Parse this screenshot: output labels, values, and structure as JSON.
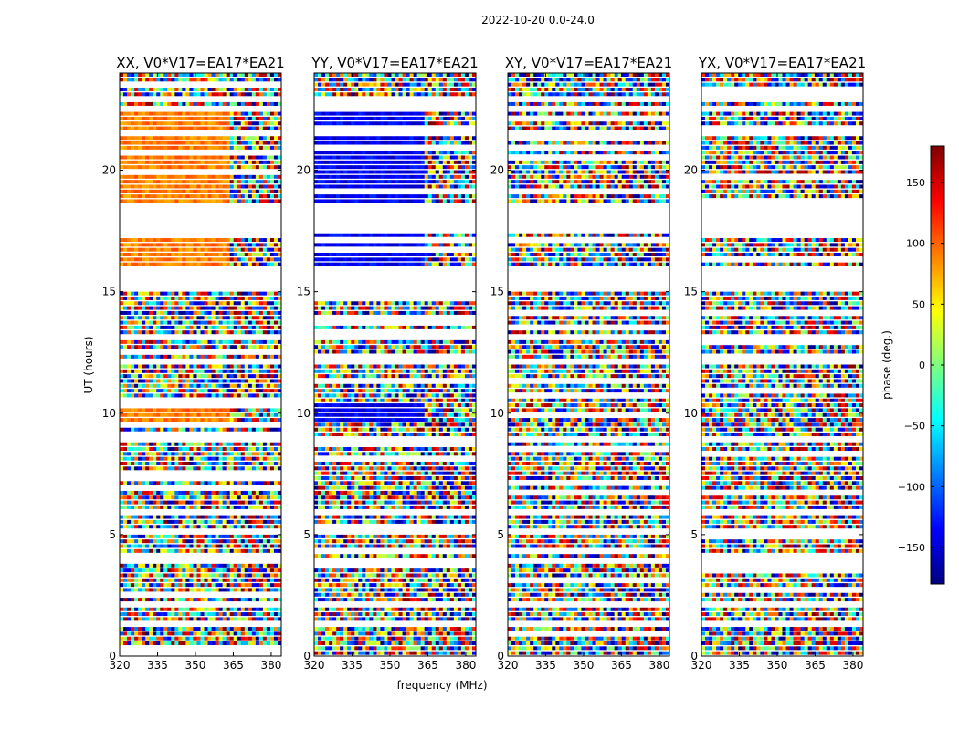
{
  "figure": {
    "suptitle": "2022-10-20 0.0-24.0"
  },
  "chart_data": {
    "type": "heatmap",
    "panels": [
      {
        "title": "XX, V0*V17=EA17*EA21",
        "polarization": "XX",
        "baseline": "V0*V17=EA17*EA21"
      },
      {
        "title": "YY, V0*V17=EA17*EA21",
        "polarization": "YY",
        "baseline": "V0*V17=EA17*EA21"
      },
      {
        "title": "XY, V0*V17=EA17*EA21",
        "polarization": "XY",
        "baseline": "V0*V17=EA17*EA21"
      },
      {
        "title": "YX, V0*V17=EA17*EA21",
        "polarization": "YX",
        "baseline": "V0*V17=EA17*EA21"
      }
    ],
    "xlabel": "frequency (MHz)",
    "ylabel": "UT (hours)",
    "xlim": [
      320,
      384
    ],
    "ylim": [
      0,
      24
    ],
    "xticks": [
      320,
      335,
      350,
      365,
      380
    ],
    "xtick_labels": [
      "320",
      "335",
      "350",
      "365",
      "380"
    ],
    "yticks": [
      0,
      5,
      10,
      15,
      20
    ],
    "ytick_labels": [
      "0",
      "5",
      "10",
      "15",
      "20"
    ],
    "colorbar": {
      "label": "phase (deg.)",
      "range": [
        -180,
        180
      ],
      "ticks": [
        -150,
        -100,
        -50,
        0,
        50,
        100,
        150
      ],
      "tick_labels": [
        "−150",
        "−100",
        "−50",
        "0",
        "50",
        "100",
        "150"
      ],
      "colormap": "jet",
      "colors": [
        "#00007f",
        "#0000ff",
        "#007fff",
        "#00ffff",
        "#7fff7f",
        "#ffff00",
        "#ff7f00",
        "#ff0000",
        "#7f0000"
      ]
    },
    "data_gaps_ut": [
      [
        1.3,
        1.5
      ],
      [
        2.0,
        2.2
      ],
      [
        3.9,
        4.1
      ],
      [
        5.0,
        5.3
      ],
      [
        5.8,
        6.0
      ],
      [
        7.3,
        7.5
      ],
      [
        8.8,
        9.0
      ],
      [
        9.9,
        10.1
      ],
      [
        12.0,
        12.2
      ],
      [
        13.0,
        13.2
      ],
      [
        15.0,
        16.0
      ],
      [
        17.4,
        18.7
      ],
      [
        21.4,
        21.6
      ],
      [
        22.4,
        22.6
      ],
      [
        22.9,
        23.0
      ]
    ],
    "coherent_region": {
      "freq_range": [
        320,
        363
      ],
      "ut_ranges": [
        [
          16.0,
          17.4
        ],
        [
          18.7,
          21.4
        ],
        [
          21.6,
          22.4
        ],
        [
          9.7,
          10.4
        ]
      ]
    },
    "coherent_phase_deg": {
      "XX": 90,
      "YY": -140,
      "XY": null,
      "YX": null
    }
  }
}
